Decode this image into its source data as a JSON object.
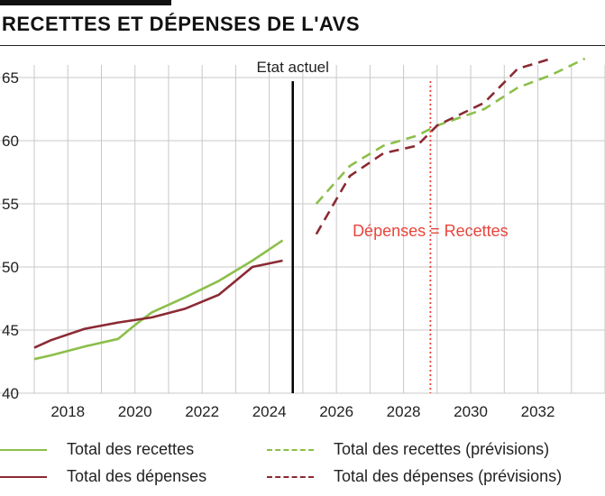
{
  "header": {
    "title": "RECETTES ET DÉPENSES DE L'AVS"
  },
  "colors": {
    "recettes": "#8cbf4a",
    "depenses": "#8b2a33",
    "current": "#000000",
    "breakeven": "#e8453c",
    "grid": "#c8c8c8"
  },
  "chart_data": {
    "type": "line",
    "xlim": [
      2017,
      2034
    ],
    "ylim": [
      40,
      66
    ],
    "xticks": [
      2018,
      2020,
      2022,
      2024,
      2026,
      2028,
      2030,
      2032
    ],
    "xtick_labels": [
      "2018",
      "2020",
      "2022",
      "2024",
      "2026",
      "2028",
      "2030",
      "2032"
    ],
    "yticks": [
      40,
      45,
      50,
      55,
      60,
      65
    ],
    "ytick_labels": [
      "40",
      "45",
      "50",
      "55",
      "60",
      "65"
    ],
    "grid": true,
    "vertical_markers": [
      {
        "x": 2024.7,
        "label": "Etat actuel",
        "style": "solid"
      },
      {
        "x": 2028.8,
        "label": "Dépenses = Recettes",
        "style": "dotted"
      }
    ],
    "series": [
      {
        "name": "Total des recettes",
        "style": "solid",
        "color_key": "recettes",
        "x": [
          2017,
          2017.5,
          2018.5,
          2019.5,
          2020,
          2020.5,
          2021.5,
          2022.5,
          2023.5,
          2024.4
        ],
        "y": [
          42.7,
          43.0,
          43.7,
          44.3,
          45.4,
          46.4,
          47.6,
          48.9,
          50.5,
          52.1
        ]
      },
      {
        "name": "Total des dépenses",
        "style": "solid",
        "color_key": "depenses",
        "x": [
          2017,
          2017.5,
          2018.5,
          2019.5,
          2020.5,
          2021.5,
          2022.5,
          2023.5,
          2024.4
        ],
        "y": [
          43.6,
          44.2,
          45.1,
          45.6,
          46.0,
          46.7,
          47.8,
          50.0,
          50.5
        ]
      },
      {
        "name": "Total des recettes (prévisions)",
        "style": "dashed",
        "color_key": "recettes",
        "x": [
          2025.4,
          2026.4,
          2027.4,
          2028.4,
          2029.0,
          2030.4,
          2031.4,
          2032.4,
          2033.4
        ],
        "y": [
          55.0,
          58.0,
          59.6,
          60.4,
          61.2,
          62.5,
          64.2,
          65.2,
          66.5
        ]
      },
      {
        "name": "Total des dépenses (prévisions)",
        "style": "dashed",
        "color_key": "depenses",
        "x": [
          2025.4,
          2026.4,
          2027.4,
          2028.4,
          2029.0,
          2030.4,
          2031.4,
          2032.4
        ],
        "y": [
          52.6,
          57.2,
          59.0,
          59.6,
          61.2,
          63.0,
          65.7,
          66.5
        ]
      }
    ]
  },
  "legend": [
    {
      "label": "Total des recettes",
      "color_key": "recettes",
      "style": "solid"
    },
    {
      "label": "Total des recettes (prévisions)",
      "color_key": "recettes",
      "style": "dashed"
    },
    {
      "label": "Total des dépenses",
      "color_key": "depenses",
      "style": "solid"
    },
    {
      "label": "Total des dépenses (prévisions)",
      "color_key": "depenses",
      "style": "dashed"
    }
  ]
}
